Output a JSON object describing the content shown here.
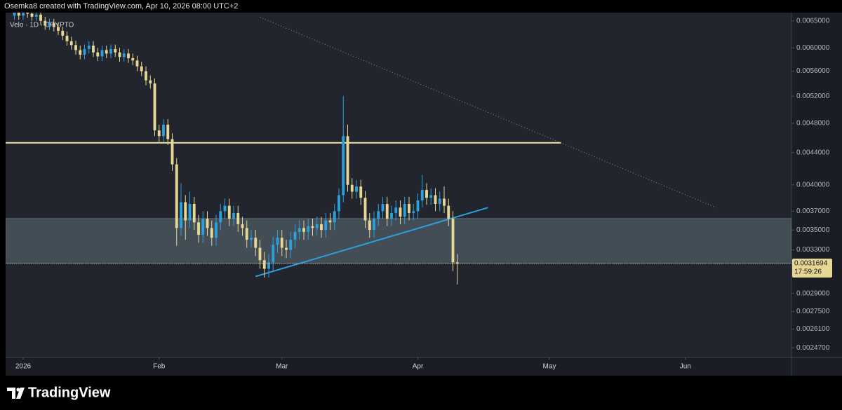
{
  "header": "Osemka8 created with TradingView.com, Apr 10, 2026 08:00 UTC+2",
  "footer": {
    "brand": "TradingView"
  },
  "chart_data": {
    "type": "candlestick",
    "title": "Velo · 1D · CRYPTO",
    "log_scale": true,
    "up_color": "#2aa0dc",
    "down_color": "#e6d792",
    "xlim": [
      -4,
      175.2
    ],
    "xticks": [
      {
        "value": 0,
        "label": "2026"
      },
      {
        "value": 31,
        "label": "Feb"
      },
      {
        "value": 59,
        "label": "Mar"
      },
      {
        "value": 90,
        "label": "Apr"
      },
      {
        "value": 120,
        "label": "May"
      },
      {
        "value": 151,
        "label": "Jun"
      }
    ],
    "ylim": [
      0.0024,
      0.00666
    ],
    "yticks": [
      {
        "value": 0.0065,
        "label": "0.0065000"
      },
      {
        "value": 0.006,
        "label": "0.0060000"
      },
      {
        "value": 0.0056,
        "label": "0.0056000"
      },
      {
        "value": 0.0052,
        "label": "0.0052000"
      },
      {
        "value": 0.0048,
        "label": "0.0048000"
      },
      {
        "value": 0.0044,
        "label": "0.0044000"
      },
      {
        "value": 0.004,
        "label": "0.0040000"
      },
      {
        "value": 0.0037,
        "label": "0.0037000"
      },
      {
        "value": 0.0035,
        "label": "0.0035000"
      },
      {
        "value": 0.0033,
        "label": "0.0033000"
      },
      {
        "value": 0.0029,
        "label": "0.0029000"
      },
      {
        "value": 0.00275,
        "label": "0.0027500"
      },
      {
        "value": 0.00261,
        "label": "0.0026100"
      },
      {
        "value": 0.00247,
        "label": "0.0024700"
      }
    ],
    "last_price": 0.0031694,
    "countdown": "17:59:26",
    "zone": [
      0.00317,
      0.00362
    ],
    "lines": [
      {
        "style": "solid",
        "color": "#f3eaa8",
        "x": [
          -4,
          122.7
        ],
        "y": [
          0.00453,
          0.00453
        ]
      },
      {
        "style": "solid",
        "color": "#2aa0dc",
        "x": [
          53,
          106
        ],
        "y": [
          0.00305,
          0.00374
        ]
      },
      {
        "style": "dotted",
        "color": "#8a8f99",
        "x": [
          54,
          158
        ],
        "y": [
          0.00657,
          0.00374
        ]
      }
    ],
    "x": [
      -2,
      -1,
      0,
      1,
      2,
      3,
      4,
      5,
      6,
      7,
      8,
      9,
      10,
      11,
      12,
      13,
      14,
      15,
      16,
      17,
      18,
      19,
      20,
      21,
      22,
      23,
      24,
      25,
      26,
      27,
      28,
      29,
      30,
      31,
      32,
      33,
      34,
      35,
      36,
      37,
      38,
      39,
      40,
      41,
      42,
      43,
      44,
      45,
      46,
      47,
      48,
      49,
      50,
      51,
      52,
      53,
      54,
      55,
      56,
      57,
      58,
      59,
      60,
      61,
      62,
      63,
      64,
      65,
      66,
      67,
      68,
      69,
      70,
      71,
      72,
      73,
      74,
      75,
      76,
      77,
      78,
      79,
      80,
      81,
      82,
      83,
      84,
      85,
      86,
      87,
      88,
      89,
      90,
      91,
      92,
      93,
      94,
      95,
      96,
      97,
      98,
      99
    ],
    "open": [
      0.0066,
      0.00668,
      0.0066,
      0.00672,
      0.00664,
      0.00658,
      0.00662,
      0.0065,
      0.00641,
      0.00646,
      0.00638,
      0.00631,
      0.00622,
      0.00612,
      0.00605,
      0.00596,
      0.00588,
      0.00598,
      0.00604,
      0.00592,
      0.00585,
      0.00596,
      0.0059,
      0.00598,
      0.00592,
      0.00584,
      0.0059,
      0.00582,
      0.00578,
      0.00568,
      0.0056,
      0.00545,
      0.0054,
      0.0047,
      0.00462,
      0.00478,
      0.00458,
      0.00425,
      0.00352,
      0.0038,
      0.0036,
      0.00378,
      0.00358,
      0.00345,
      0.00362,
      0.00352,
      0.00342,
      0.00358,
      0.0037,
      0.00376,
      0.00362,
      0.00368,
      0.00356,
      0.00352,
      0.0034,
      0.00342,
      0.00332,
      0.0032,
      0.00312,
      0.00318,
      0.00335,
      0.00342,
      0.00332,
      0.0033,
      0.0034,
      0.00348,
      0.00352,
      0.00348,
      0.00354,
      0.00352,
      0.00356,
      0.0035,
      0.0036,
      0.00358,
      0.0037,
      0.00388,
      0.00462,
      0.004,
      0.00392,
      0.00398,
      0.00385,
      0.0036,
      0.0035,
      0.00362,
      0.0037,
      0.00378,
      0.00362,
      0.00368,
      0.00374,
      0.00364,
      0.00378,
      0.00368,
      0.0037,
      0.00382,
      0.00394,
      0.00385,
      0.00388,
      0.00378,
      0.00384,
      0.00376,
      0.00362,
      0.00318
    ],
    "high": [
      0.00676,
      0.00674,
      0.0068,
      0.0068,
      0.00672,
      0.0067,
      0.0067,
      0.00658,
      0.00654,
      0.00654,
      0.00646,
      0.00639,
      0.0063,
      0.0062,
      0.00613,
      0.00604,
      0.00606,
      0.00612,
      0.00612,
      0.006,
      0.00604,
      0.00604,
      0.00606,
      0.00606,
      0.006,
      0.00598,
      0.00598,
      0.0059,
      0.00586,
      0.00576,
      0.00568,
      0.00553,
      0.00548,
      0.00478,
      0.00486,
      0.00486,
      0.00466,
      0.00433,
      0.00402,
      0.00388,
      0.00392,
      0.00386,
      0.00366,
      0.0037,
      0.0037,
      0.0036,
      0.00366,
      0.00378,
      0.00384,
      0.00384,
      0.00376,
      0.00376,
      0.00364,
      0.0036,
      0.0035,
      0.0035,
      0.0034,
      0.00328,
      0.00326,
      0.00343,
      0.0035,
      0.0035,
      0.0034,
      0.00348,
      0.00356,
      0.0036,
      0.0036,
      0.00362,
      0.00362,
      0.00364,
      0.00364,
      0.00368,
      0.00368,
      0.00378,
      0.00396,
      0.0052,
      0.00478,
      0.00408,
      0.00406,
      0.00406,
      0.00393,
      0.00368,
      0.0037,
      0.00378,
      0.00386,
      0.00386,
      0.00376,
      0.00382,
      0.00382,
      0.00386,
      0.00386,
      0.00378,
      0.0039,
      0.00412,
      0.00402,
      0.00396,
      0.00396,
      0.00392,
      0.00398,
      0.00384,
      0.0037,
      0.00326
    ],
    "low": [
      0.00652,
      0.00652,
      0.00652,
      0.00656,
      0.0065,
      0.0065,
      0.00642,
      0.00633,
      0.00633,
      0.0063,
      0.00623,
      0.00614,
      0.00604,
      0.00597,
      0.00588,
      0.0058,
      0.0058,
      0.0059,
      0.00584,
      0.00577,
      0.00577,
      0.00582,
      0.00582,
      0.00584,
      0.00576,
      0.00576,
      0.00574,
      0.0057,
      0.0056,
      0.00552,
      0.00537,
      0.00532,
      0.00462,
      0.00454,
      0.00454,
      0.0045,
      0.00417,
      0.00334,
      0.00344,
      0.0034,
      0.00352,
      0.0035,
      0.00337,
      0.00337,
      0.00344,
      0.00334,
      0.00334,
      0.0035,
      0.00362,
      0.00354,
      0.00354,
      0.00348,
      0.00344,
      0.00332,
      0.00332,
      0.00324,
      0.00312,
      0.00304,
      0.00304,
      0.0031,
      0.00327,
      0.00324,
      0.00322,
      0.00322,
      0.00332,
      0.0034,
      0.0034,
      0.0034,
      0.00344,
      0.00344,
      0.00342,
      0.00342,
      0.0035,
      0.0035,
      0.00362,
      0.0038,
      0.00392,
      0.00384,
      0.00384,
      0.00377,
      0.00352,
      0.00342,
      0.00342,
      0.00354,
      0.00362,
      0.00354,
      0.00354,
      0.0036,
      0.00356,
      0.00356,
      0.0036,
      0.0036,
      0.00362,
      0.00374,
      0.00377,
      0.00377,
      0.0037,
      0.0037,
      0.00368,
      0.00354,
      0.0031,
      0.00298
    ],
    "close": [
      0.00668,
      0.0066,
      0.00672,
      0.00664,
      0.00658,
      0.00662,
      0.0065,
      0.00641,
      0.00646,
      0.00638,
      0.00631,
      0.00622,
      0.00612,
      0.00605,
      0.00596,
      0.00588,
      0.00598,
      0.00604,
      0.00592,
      0.00585,
      0.00596,
      0.0059,
      0.00598,
      0.00592,
      0.00584,
      0.0059,
      0.00582,
      0.00578,
      0.00568,
      0.0056,
      0.00545,
      0.0054,
      0.0047,
      0.00462,
      0.00478,
      0.00458,
      0.00425,
      0.00352,
      0.0038,
      0.0036,
      0.00378,
      0.00358,
      0.00345,
      0.00362,
      0.00352,
      0.00342,
      0.00358,
      0.0037,
      0.00376,
      0.00362,
      0.00368,
      0.00356,
      0.00352,
      0.0034,
      0.00342,
      0.00332,
      0.0032,
      0.00312,
      0.00318,
      0.00335,
      0.00342,
      0.00332,
      0.0033,
      0.0034,
      0.00348,
      0.00352,
      0.00348,
      0.00354,
      0.00352,
      0.00356,
      0.0035,
      0.0036,
      0.00358,
      0.0037,
      0.00388,
      0.00462,
      0.004,
      0.00392,
      0.00398,
      0.00385,
      0.0036,
      0.0035,
      0.00362,
      0.0037,
      0.00378,
      0.00362,
      0.00368,
      0.00374,
      0.00364,
      0.00378,
      0.00368,
      0.0037,
      0.00382,
      0.00394,
      0.00385,
      0.00388,
      0.00378,
      0.00384,
      0.00376,
      0.00362,
      0.00318,
      0.0031694
    ]
  }
}
